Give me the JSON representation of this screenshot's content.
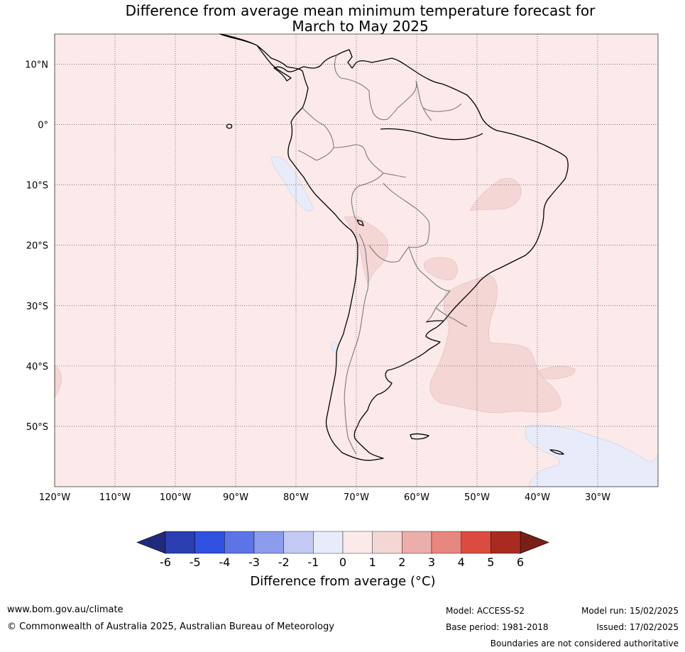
{
  "title": {
    "line1": "Difference from average mean minimum temperature forecast for",
    "line2": "March to May 2025"
  },
  "map": {
    "region": "South America",
    "background_anomaly_color": "#fbeae9",
    "lat_labels": [
      "10°N",
      "0°",
      "10°S",
      "20°S",
      "30°S",
      "40°S",
      "50°S"
    ],
    "lon_labels": [
      "120°W",
      "110°W",
      "100°W",
      "90°W",
      "80°W",
      "70°W",
      "60°W",
      "50°W",
      "40°W",
      "30°W"
    ],
    "lat_values": [
      10,
      0,
      -10,
      -20,
      -30,
      -40,
      -50
    ],
    "lon_values": [
      -120,
      -110,
      -100,
      -90,
      -80,
      -70,
      -60,
      -50,
      -40,
      -30
    ],
    "extent": {
      "lon_min": -120,
      "lon_max": -20,
      "lat_min": -60,
      "lat_max": 15
    }
  },
  "colorbar": {
    "title": "Difference from average (°C)",
    "ticks": [
      "-6",
      "-5",
      "-4",
      "-3",
      "-2",
      "-1",
      "0",
      "1",
      "2",
      "3",
      "4",
      "5",
      "6"
    ],
    "colors": [
      "#2a3eb1",
      "#3050e0",
      "#5c74e6",
      "#8a9ceb",
      "#c2c9f2",
      "#e8ebfa",
      "#fbeae9",
      "#f4d6d4",
      "#ecaeaa",
      "#e8877f",
      "#db4b3f",
      "#a92a21"
    ],
    "under_color": "#1f2b7a",
    "over_color": "#7a1f18"
  },
  "footer": {
    "url": "www.bom.gov.au/climate",
    "copyright": "© Commonwealth of Australia 2025, Australian Bureau of Meteorology",
    "model": "Model: ACCESS-S2",
    "base_period": "Base period: 1981-2018",
    "model_run": "Model run: 15/02/2025",
    "issued": "Issued: 17/02/2025",
    "disclaimer": "Boundaries are not considered authoritative"
  }
}
